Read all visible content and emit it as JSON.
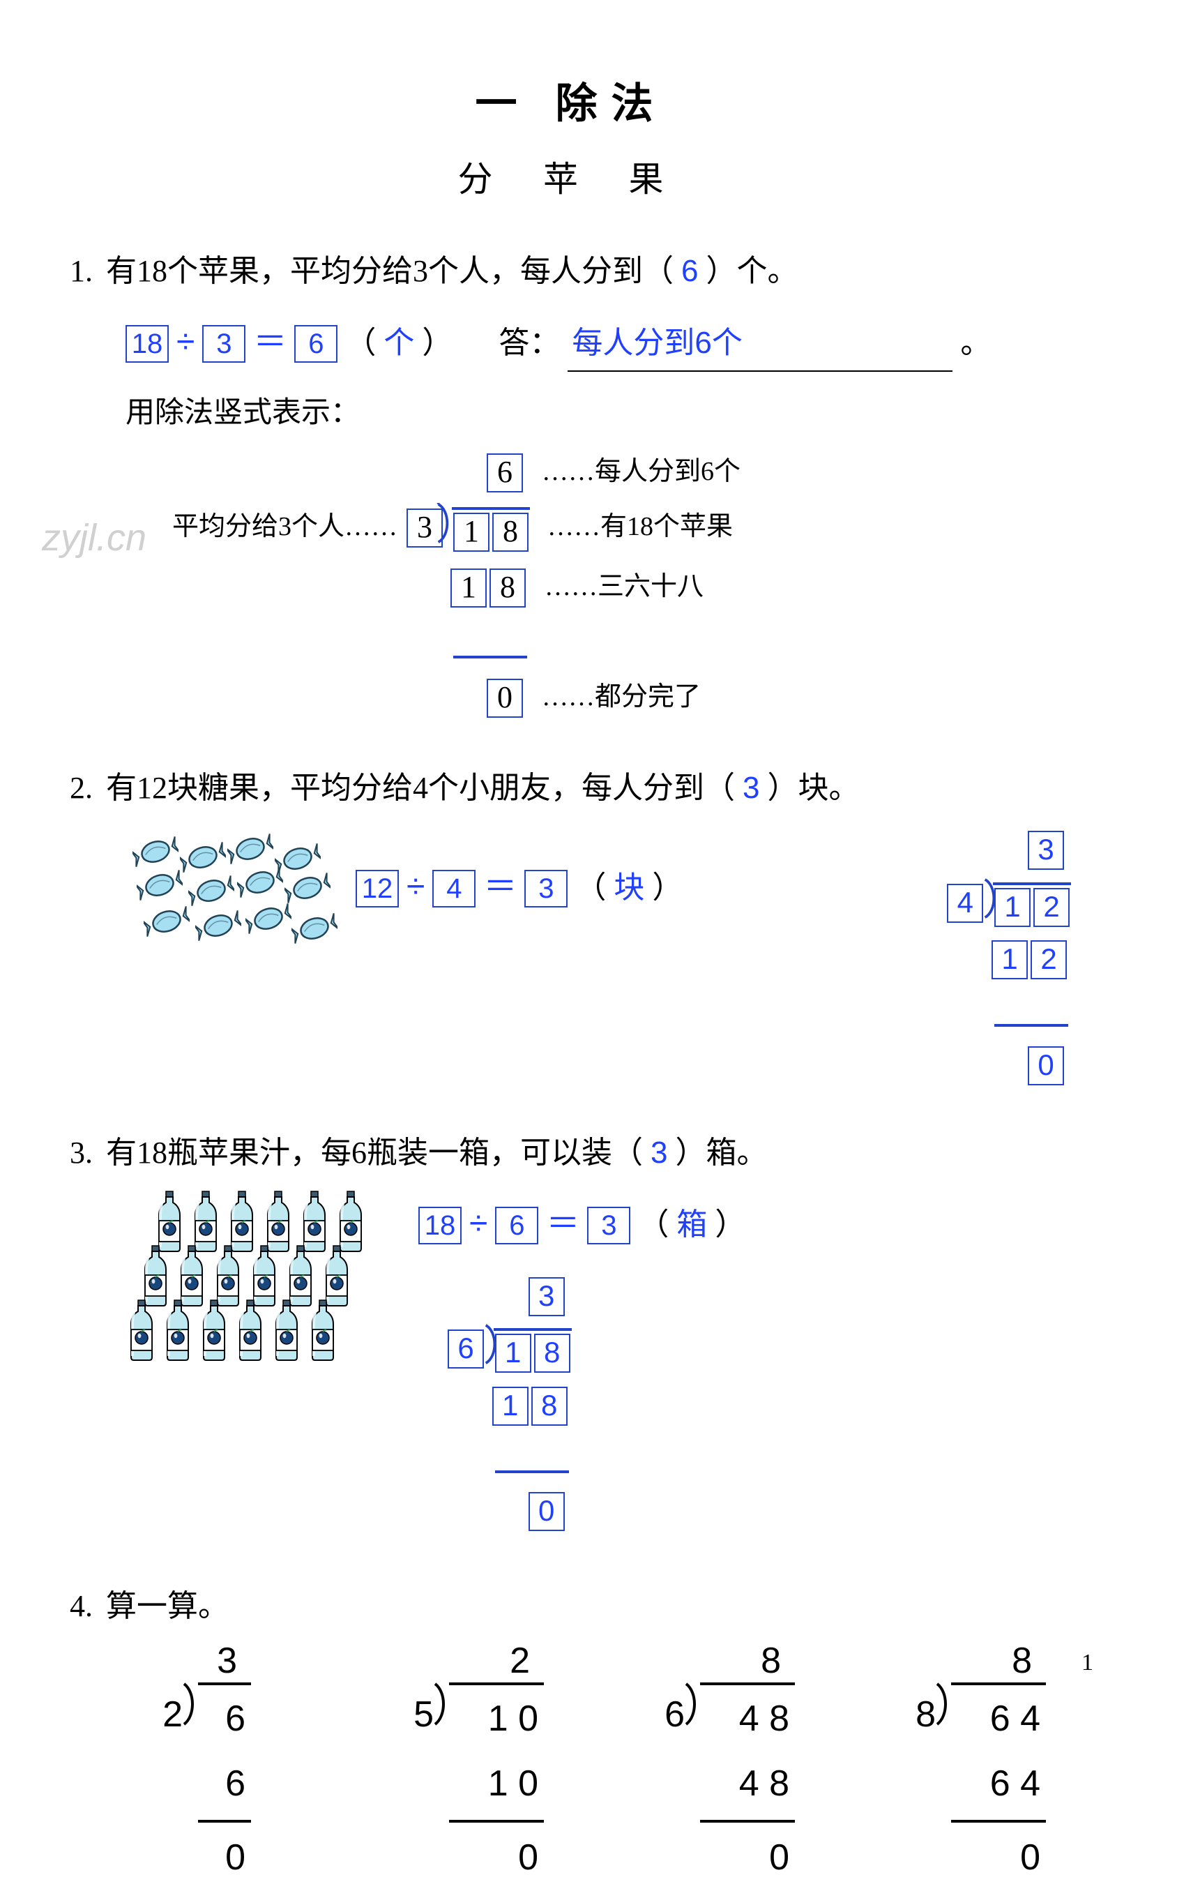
{
  "page_number": "1",
  "watermark": "zyjl.cn",
  "title": "一  除法",
  "subtitle": "分  苹  果",
  "colors": {
    "answer": "#2040ff",
    "box_border": "#2244cc",
    "text": "#000000",
    "bg": "#ffffff",
    "candy": "#a6dff2",
    "candy_stroke": "#214356",
    "bottle_body": "#bfe8f1",
    "bottle_light": "#e6f7fb",
    "bottle_dark": "#3b5c70",
    "bottle_label": "#ffffff",
    "bottle_fruit": "#18477e"
  },
  "typography": {
    "title_fontsize": 60,
    "subtitle_fontsize": 50,
    "body_fontsize": 44,
    "answer_font": "Arial",
    "body_font": "SimSun / STSong"
  },
  "q1": {
    "number": "1.",
    "text_1": "有18个苹果，平均分给3个人，每人分到（",
    "blank_ans": "6",
    "text_2": "）个。",
    "equation": {
      "a": "18",
      "op": "÷",
      "b": "3",
      "eq": "＝",
      "c": "6",
      "unit_open": "（",
      "unit": "个",
      "unit_close": "）"
    },
    "answer_label": "答：",
    "answer_text": "每人分到6个",
    "answer_end": "。",
    "vertial_label": "用除法竖式表示：",
    "longdiv": {
      "left_annot": "平均分给3个人……",
      "divisor": "3",
      "dividend": [
        "1",
        "8"
      ],
      "quotient": "6",
      "partial": [
        "1",
        "8"
      ],
      "remainder": "0",
      "annot_quotient": "……每人分到6个",
      "annot_dividend": "……有18个苹果",
      "annot_partial": "……三六十八",
      "annot_remainder": "……都分完了"
    }
  },
  "q2": {
    "number": "2.",
    "text_1": "有12块糖果，平均分给4个小朋友，每人分到（",
    "blank_ans": "3",
    "text_2": "）块。",
    "candy_count": 12,
    "equation": {
      "a": "12",
      "op": "÷",
      "b": "4",
      "eq": "＝",
      "c": "3",
      "unit_open": "（",
      "unit": "块",
      "unit_close": "）"
    },
    "longdiv": {
      "divisor": "4",
      "dividend": [
        "1",
        "2"
      ],
      "quotient": "3",
      "partial": [
        "1",
        "2"
      ],
      "remainder": "0"
    }
  },
  "q3": {
    "number": "3.",
    "text_1": "有18瓶苹果汁，每6瓶装一箱，可以装（",
    "blank_ans": "3",
    "text_2": "）箱。",
    "bottle_count": 18,
    "bottle_rows": 3,
    "bottle_cols": 6,
    "equation": {
      "a": "18",
      "op": "÷",
      "b": "6",
      "eq": "＝",
      "c": "3",
      "unit_open": "（",
      "unit": "箱",
      "unit_close": "）"
    },
    "longdiv": {
      "divisor": "6",
      "dividend": [
        "1",
        "8"
      ],
      "quotient": "3",
      "partial": [
        "1",
        "8"
      ],
      "remainder": "0"
    }
  },
  "q4": {
    "number": "4.",
    "title": "算一算。",
    "problems": [
      {
        "divisor": "2",
        "dividend": "6",
        "quotient": "3",
        "partial": "6",
        "remainder": "0",
        "width_units": 1
      },
      {
        "divisor": "5",
        "dividend": "1 0",
        "quotient": "2",
        "partial": "1 0",
        "remainder": "0",
        "width_units": 2
      },
      {
        "divisor": "6",
        "dividend": "4 8",
        "quotient": "8",
        "partial": "4 8",
        "remainder": "0",
        "width_units": 2
      },
      {
        "divisor": "8",
        "dividend": "6 4",
        "quotient": "8",
        "partial": "6 4",
        "remainder": "0",
        "width_units": 2
      }
    ]
  }
}
